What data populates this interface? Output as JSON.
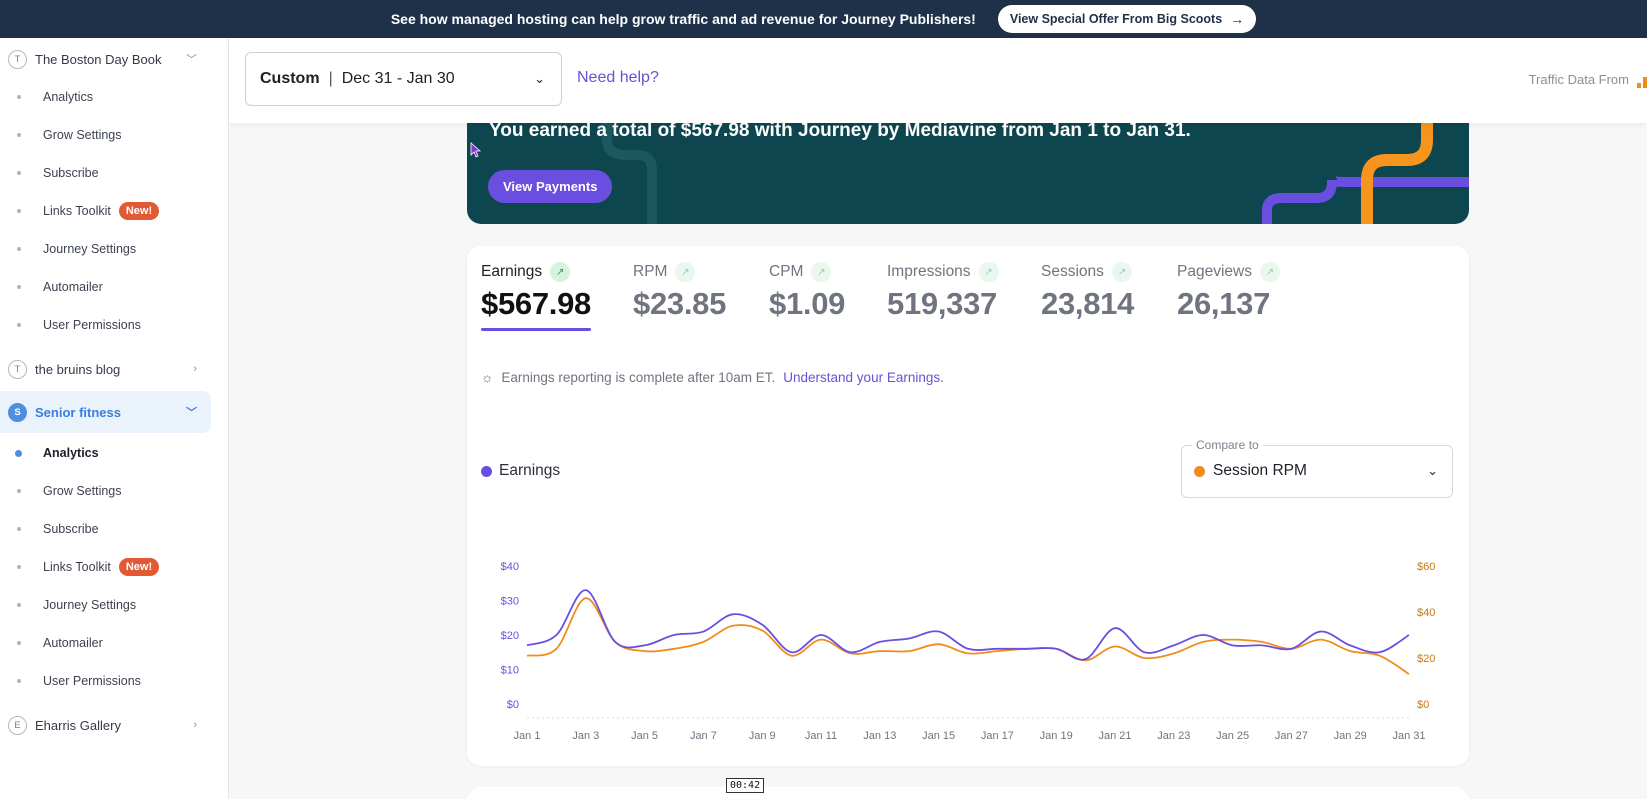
{
  "banner": {
    "text": "See how managed hosting can help grow traffic and ad revenue for Journey Publishers!",
    "button_label": "View Special Offer From Big Scoots",
    "background": "#1f3148"
  },
  "sidebar": {
    "sites": [
      {
        "initial": "T",
        "name": "The Boston Day Book",
        "expanded": true
      },
      {
        "initial": "T",
        "name": "the bruins blog",
        "expanded": false
      },
      {
        "initial": "S",
        "name": "Senior fitness",
        "expanded": true,
        "active": true
      },
      {
        "initial": "E",
        "name": "Eharris Gallery",
        "expanded": false
      }
    ],
    "menu": [
      "Analytics",
      "Grow Settings",
      "Subscribe",
      "Links Toolkit",
      "Journey Settings",
      "Automailer",
      "User Permissions"
    ],
    "new_badge": "New!"
  },
  "header": {
    "date_mode": "Custom",
    "date_range": "Dec 31 - Jan 30",
    "help_link": "Need help?",
    "traffic_from": "Traffic Data From"
  },
  "earnings_banner": {
    "message": "You earned a total of $567.98 with Journey by Mediavine from Jan 1 to Jan 31.",
    "button_label": "View Payments"
  },
  "metrics": [
    {
      "label": "Earnings",
      "value": "$567.98",
      "active": true
    },
    {
      "label": "RPM",
      "value": "$23.85"
    },
    {
      "label": "CPM",
      "value": "$1.09"
    },
    {
      "label": "Impressions",
      "value": "519,337"
    },
    {
      "label": "Sessions",
      "value": "23,814"
    },
    {
      "label": "Pageviews",
      "value": "26,137"
    }
  ],
  "note": {
    "text": "Earnings reporting is complete after 10am ET.",
    "link": "Understand your Earnings."
  },
  "legend": {
    "label": "Earnings"
  },
  "compare": {
    "label": "Compare to",
    "value": "Session RPM"
  },
  "timer": "00:42",
  "colors": {
    "accent": "#6a4ee0",
    "compare": "#f08d1a",
    "banner_teal": "#0e4650"
  },
  "chart_data": {
    "type": "line",
    "x": [
      "Jan 1",
      "Jan 2",
      "Jan 3",
      "Jan 4",
      "Jan 5",
      "Jan 6",
      "Jan 7",
      "Jan 8",
      "Jan 9",
      "Jan 10",
      "Jan 11",
      "Jan 12",
      "Jan 13",
      "Jan 14",
      "Jan 15",
      "Jan 16",
      "Jan 17",
      "Jan 18",
      "Jan 19",
      "Jan 20",
      "Jan 21",
      "Jan 22",
      "Jan 23",
      "Jan 24",
      "Jan 25",
      "Jan 26",
      "Jan 27",
      "Jan 28",
      "Jan 29",
      "Jan 30",
      "Jan 31"
    ],
    "x_tick_labels": [
      "Jan 1",
      "Jan 3",
      "Jan 5",
      "Jan 7",
      "Jan 9",
      "Jan 11",
      "Jan 13",
      "Jan 15",
      "Jan 17",
      "Jan 19",
      "Jan 21",
      "Jan 23",
      "Jan 25",
      "Jan 27",
      "Jan 29",
      "Jan 31"
    ],
    "series": [
      {
        "name": "Earnings",
        "axis": "left",
        "color": "#6a4ee0",
        "values": [
          17,
          20,
          33,
          18,
          17,
          20,
          21,
          26,
          23,
          15,
          20,
          15,
          18,
          19,
          21,
          16,
          16,
          16,
          16,
          13,
          22,
          15,
          17,
          20,
          17,
          17,
          16,
          21,
          17,
          15,
          20
        ]
      },
      {
        "name": "Session RPM",
        "axis": "right",
        "color": "#f08d1a",
        "values": [
          21,
          24,
          46,
          27,
          23,
          24,
          27,
          34,
          32,
          21,
          28,
          22,
          23,
          23,
          26,
          22,
          23,
          24,
          24,
          19,
          25,
          20,
          22,
          27,
          28,
          27,
          24,
          28,
          23,
          21,
          13
        ]
      }
    ],
    "y_left": {
      "ticks": [
        "$0",
        "$10",
        "$20",
        "$30",
        "$40"
      ],
      "range": [
        0,
        40
      ]
    },
    "y_right": {
      "ticks": [
        "$0",
        "$20",
        "$40",
        "$60"
      ],
      "range": [
        0,
        60
      ]
    }
  }
}
